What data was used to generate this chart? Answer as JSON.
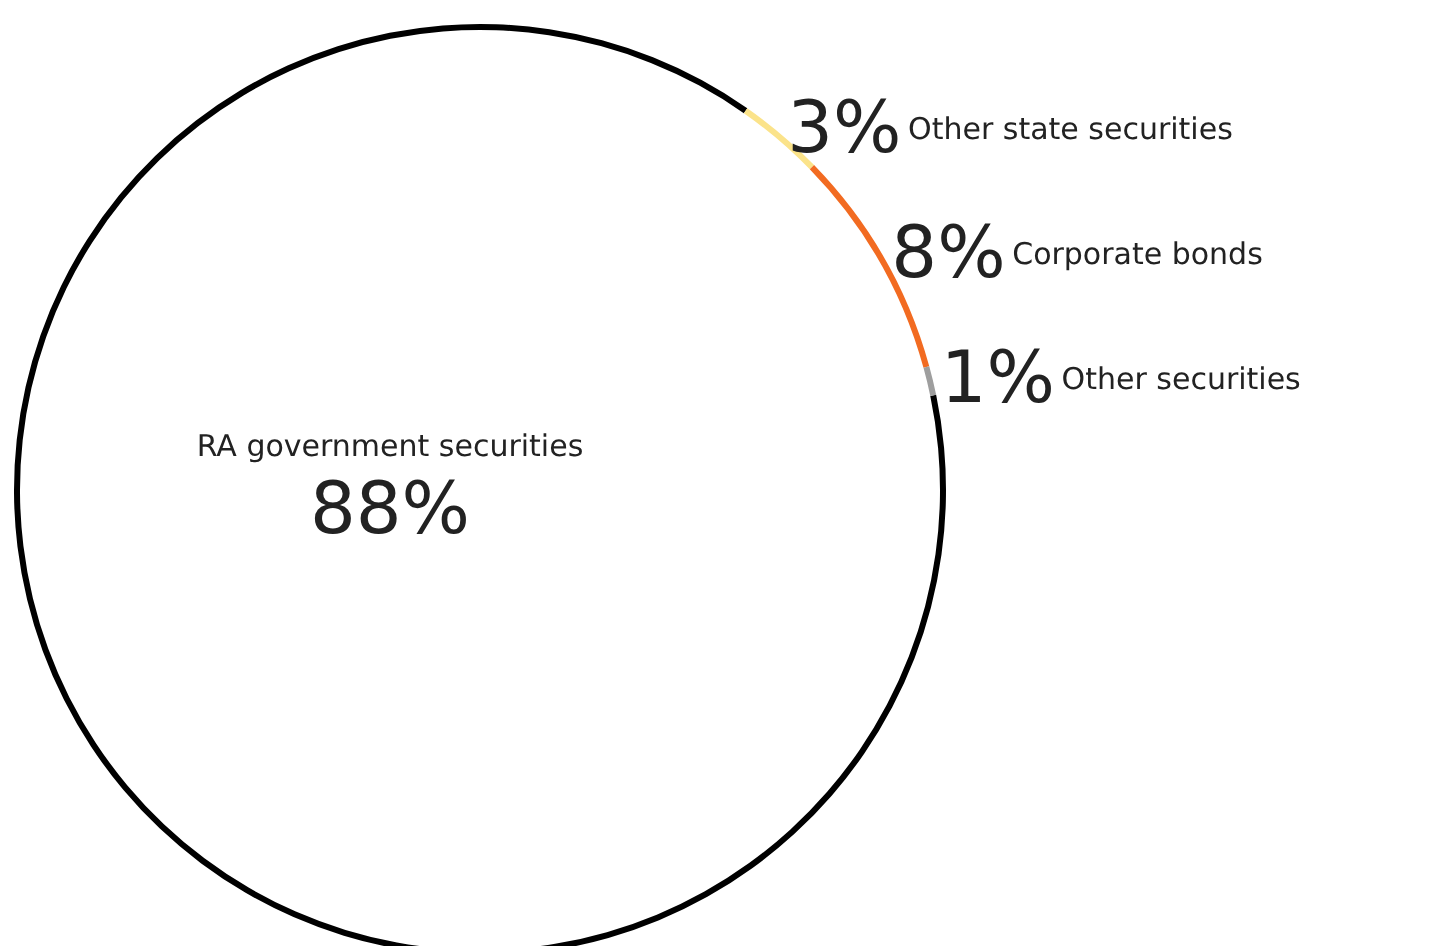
{
  "chart_data": {
    "type": "donut",
    "categories": [
      "RA government securities",
      "Other state securities",
      "Corporate bonds",
      "Other securities"
    ],
    "values": [
      88,
      3,
      8,
      1
    ],
    "colors": [
      "#000000",
      "#fbe38a",
      "#f26b21",
      "#9e9e9e"
    ],
    "value_labels": [
      "88%",
      "3%",
      "8%",
      "1%"
    ],
    "legend": false
  }
}
